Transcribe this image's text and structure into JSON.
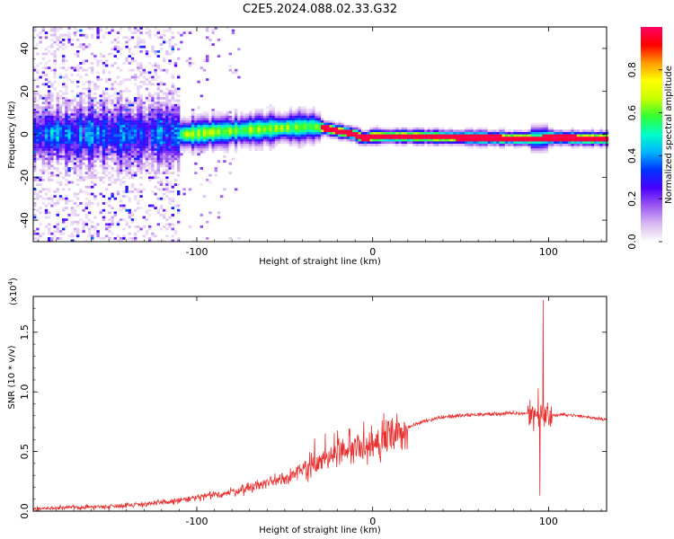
{
  "page_title": "C2E5.2024.088.02.33.G32",
  "chart_data": [
    {
      "type": "heatmap",
      "title": "C2E5.2024.088.02.33.G32",
      "xlabel": "Height of straight line (km)",
      "ylabel": "Frequency (Hz)",
      "xlim": [
        -193,
        133
      ],
      "ylim": [
        -50,
        50
      ],
      "x_ticks": [
        -100,
        0,
        100
      ],
      "y_ticks": [
        -40,
        -20,
        0,
        20,
        40
      ],
      "colorbar": {
        "label": "Normalized spectral amplitude",
        "range": [
          0,
          1
        ],
        "ticks": [
          0.0,
          0.2,
          0.4,
          0.6,
          0.8
        ],
        "tick_labels": [
          "0.0",
          "0.2",
          "0.4",
          "0.6",
          "0.8"
        ],
        "colors": [
          "#ffffff",
          "#d9b8f0",
          "#9b59f0",
          "#4a00ff",
          "#0033ff",
          "#00b4ff",
          "#00ffc8",
          "#33ff33",
          "#c8ff00",
          "#ffff00",
          "#ff9900",
          "#ff0000",
          "#ff0066"
        ]
      },
      "ridge": {
        "x": [
          -193,
          -150,
          -120,
          -105,
          -90,
          -70,
          -50,
          -35,
          -28,
          -20,
          -10,
          -5,
          0,
          20,
          50,
          80,
          90,
          95,
          100,
          120,
          133
        ],
        "freq": [
          0,
          0,
          0,
          0,
          1,
          2,
          3,
          3.5,
          3,
          1.5,
          0,
          -2,
          -1,
          -1,
          -1.5,
          -2,
          -2,
          -2,
          -1.5,
          -2,
          -2
        ]
      }
    },
    {
      "type": "line",
      "xlabel": "Height of straight line (km)",
      "ylabel": "SNR (10 * v/v)",
      "y_multiplier": "(x10",
      "y_multiplier_exp": "4",
      "y_multiplier_close": ")",
      "xlim": [
        -193,
        133
      ],
      "ylim": [
        0,
        1.8
      ],
      "x_ticks": [
        -100,
        0,
        100
      ],
      "y_ticks": [
        0.0,
        0.5,
        1.0,
        1.5
      ],
      "y_tick_labels": [
        "0.0",
        "0.5",
        "1.0",
        "1.5"
      ],
      "line_color": "#e83030",
      "trend": {
        "x": [
          -193,
          -150,
          -120,
          -100,
          -80,
          -60,
          -40,
          -30,
          -20,
          -10,
          0,
          10,
          20,
          30,
          40,
          60,
          80,
          90,
          95,
          100,
          110,
          133
        ],
        "y": [
          0.02,
          0.04,
          0.07,
          0.11,
          0.16,
          0.24,
          0.33,
          0.4,
          0.48,
          0.52,
          0.55,
          0.62,
          0.7,
          0.76,
          0.79,
          0.81,
          0.82,
          0.82,
          0.8,
          0.8,
          0.81,
          0.77
        ]
      },
      "spikes": [
        {
          "x": -33,
          "y": 0.61
        },
        {
          "x": -27,
          "y": 0.65
        },
        {
          "x": -13,
          "y": 0.69
        },
        {
          "x": 9,
          "y": 0.72
        },
        {
          "x": 94,
          "y": 1.03
        },
        {
          "x": 97,
          "y": 1.77
        },
        {
          "x": 95,
          "y": 0.13
        }
      ]
    }
  ]
}
